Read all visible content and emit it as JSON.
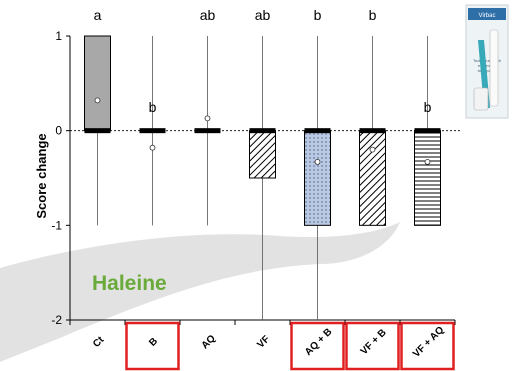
{
  "overlay": {
    "label": "Haleine",
    "label_color": "#6aaa3a",
    "highlight_color": "#e02020"
  },
  "product_image": {
    "box_text": "Virbac",
    "lines": [
      "Toothbrush with",
      "enzymatic",
      "toothpaste"
    ]
  },
  "chart_data": {
    "type": "bar",
    "ylabel": "Score change",
    "ylim": [
      -2,
      1
    ],
    "yticks": [
      1,
      0,
      -1,
      -2
    ],
    "zero_line": "dotted",
    "categories": [
      "Ct",
      "B",
      "AQ",
      "VF",
      "AQ + B",
      "VF + B",
      "VF + AQ"
    ],
    "highlighted": [
      false,
      true,
      false,
      false,
      true,
      true,
      true
    ],
    "values": [
      1,
      0,
      0,
      -0.5,
      -1,
      -1,
      -1
    ],
    "means": [
      0.32,
      -0.18,
      0.13,
      null,
      -0.33,
      -0.2,
      -0.33
    ],
    "whisker_low": [
      -1,
      -1,
      -1,
      -2,
      -2,
      -1,
      -1
    ],
    "whisker_high": [
      1,
      1,
      1,
      1,
      1,
      1,
      1
    ],
    "significance": [
      "a",
      "b",
      "ab",
      "ab",
      "b",
      "b",
      "b"
    ],
    "fills": [
      "gray",
      "none",
      "none",
      "diagonal-hatch",
      "dotted-blue",
      "diagonal-hatch",
      "horizontal-lines"
    ]
  }
}
